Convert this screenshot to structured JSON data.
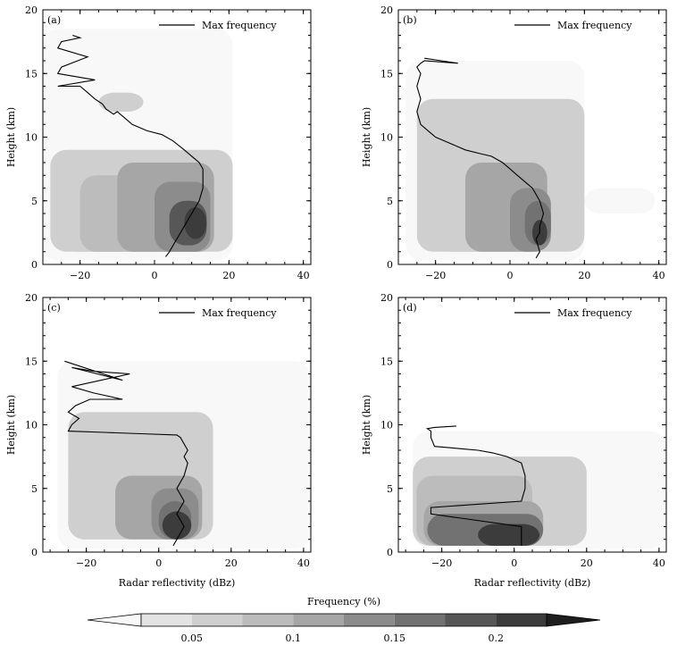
{
  "colorbar": {
    "title": "Frequency (%)",
    "tick_labels": [
      "0.05",
      "0.1",
      "0.15",
      "0.2"
    ],
    "tick_values": [
      0.05,
      0.1,
      0.15,
      0.2
    ],
    "range": [
      0,
      0.25
    ],
    "colors": [
      "#f8f8f8",
      "#e3e3e3",
      "#cfcfcf",
      "#bcbcbc",
      "#a6a6a6",
      "#8c8c8c",
      "#727272",
      "#575757",
      "#3c3c3c",
      "#1e1e1e"
    ]
  },
  "chart_data": [
    {
      "type": "heatmap",
      "panel_label": "(a)",
      "legend": "Max frequency",
      "xlabel": "",
      "ylabel": "Height (km)",
      "xlim": [
        -30,
        42
      ],
      "ylim": [
        0,
        20
      ],
      "x_ticks": [
        -20,
        0,
        20,
        40
      ],
      "y_ticks": [
        0,
        5,
        10,
        15,
        20
      ],
      "x_tick_labels": [
        "−20",
        "0",
        "20",
        "40"
      ],
      "y_tick_labels": [
        "0",
        "5",
        "10",
        "15",
        "20"
      ],
      "max_frequency_line": {
        "x": [
          3,
          4,
          5,
          6,
          7,
          8,
          9,
          10,
          11,
          12,
          13,
          13,
          13,
          12,
          10,
          8,
          5,
          2,
          -2,
          -6,
          -8,
          -10,
          -11,
          -13,
          -14,
          -16,
          -18,
          -20,
          -26,
          -16,
          -26,
          -25,
          -18,
          -26,
          -25,
          -20,
          -22
        ],
        "y": [
          0.6,
          1,
          1.5,
          2,
          2.5,
          3,
          3.5,
          4,
          4.5,
          5,
          6,
          7,
          7.5,
          8,
          8.5,
          9,
          9.7,
          10.2,
          10.5,
          11,
          11.5,
          12,
          11.8,
          12.2,
          12.6,
          13,
          13.5,
          14,
          14,
          14.5,
          15,
          15.5,
          16.3,
          17,
          17.5,
          17.8,
          18
        ]
      },
      "frequency_field": [
        {
          "y": [
            0.3,
            18.5
          ],
          "x": [
            -30,
            21
          ],
          "level": 0.02
        },
        {
          "y": [
            1,
            9
          ],
          "x": [
            -28,
            21
          ],
          "level": 0.05
        },
        {
          "y": [
            12,
            13.5
          ],
          "x": [
            -15,
            -3
          ],
          "level": 0.05
        },
        {
          "y": [
            1,
            6
          ],
          "x": [
            -25,
            10
          ],
          "level": 0.07
        },
        {
          "y": [
            1,
            7
          ],
          "x": [
            -20,
            16
          ],
          "level": 0.08
        },
        {
          "y": [
            1,
            8
          ],
          "x": [
            -10,
            16
          ],
          "level": 0.1
        },
        {
          "y": [
            1,
            6.5
          ],
          "x": [
            0,
            15
          ],
          "level": 0.13
        },
        {
          "y": [
            1.5,
            5
          ],
          "x": [
            4,
            14
          ],
          "level": 0.18
        },
        {
          "y": [
            2,
            4.5
          ],
          "x": [
            8,
            14
          ],
          "level": 0.21
        }
      ]
    },
    {
      "type": "heatmap",
      "panel_label": "(b)",
      "legend": "Max frequency",
      "xlabel": "",
      "ylabel": "Height (km)",
      "xlim": [
        -30,
        42
      ],
      "ylim": [
        0,
        20
      ],
      "x_ticks": [
        -20,
        0,
        20,
        40
      ],
      "y_ticks": [
        0,
        5,
        10,
        15,
        20
      ],
      "x_tick_labels": [
        "−20",
        "0",
        "20",
        "40"
      ],
      "y_tick_labels": [
        "0",
        "5",
        "10",
        "15",
        "20"
      ],
      "max_frequency_line": {
        "x": [
          7,
          8,
          7,
          8,
          8,
          9,
          8,
          7,
          6,
          4,
          2,
          0,
          -2,
          -5,
          -8,
          -12,
          -16,
          -20,
          -22,
          -24,
          -25,
          -24,
          -25,
          -24,
          -25,
          -24,
          -23,
          -14,
          -23
        ],
        "y": [
          0.5,
          1,
          2,
          2.5,
          3,
          4,
          5,
          5.5,
          6,
          6.5,
          7,
          7.5,
          8,
          8.5,
          8.7,
          9,
          9.5,
          10,
          10.5,
          11,
          12,
          13,
          14,
          15,
          15.5,
          15.8,
          16,
          15.8,
          16.2
        ]
      },
      "frequency_field": [
        {
          "y": [
            0.3,
            16
          ],
          "x": [
            -28,
            20
          ],
          "level": 0.02
        },
        {
          "y": [
            4,
            6
          ],
          "x": [
            20,
            39
          ],
          "level": 0.02
        },
        {
          "y": [
            1,
            13
          ],
          "x": [
            -25,
            20
          ],
          "level": 0.05
        },
        {
          "y": [
            1,
            9
          ],
          "x": [
            -20,
            10
          ],
          "level": 0.07
        },
        {
          "y": [
            1,
            8
          ],
          "x": [
            -12,
            10
          ],
          "level": 0.1
        },
        {
          "y": [
            1,
            6
          ],
          "x": [
            0,
            11
          ],
          "level": 0.13
        },
        {
          "y": [
            1.5,
            5
          ],
          "x": [
            4,
            11
          ],
          "level": 0.17
        },
        {
          "y": [
            1.5,
            3.5
          ],
          "x": [
            6,
            10
          ],
          "level": 0.21
        }
      ]
    },
    {
      "type": "heatmap",
      "panel_label": "(c)",
      "legend": "Max frequency",
      "xlabel": "Radar reflectivity (dBz)",
      "ylabel": "Height (km)",
      "xlim": [
        -32,
        42
      ],
      "ylim": [
        0,
        20
      ],
      "x_ticks": [
        -20,
        0,
        20,
        40
      ],
      "y_ticks": [
        0,
        5,
        10,
        15,
        20
      ],
      "x_tick_labels": [
        "−20",
        "0",
        "20",
        "40"
      ],
      "y_tick_labels": [
        "0",
        "5",
        "10",
        "15",
        "20"
      ],
      "max_frequency_line": {
        "x": [
          4,
          5,
          6,
          7,
          6,
          5,
          6,
          7,
          6,
          5,
          7,
          8,
          7,
          8,
          7,
          6,
          5,
          -5,
          -15,
          -25,
          -24,
          -22,
          -25,
          -23,
          -19,
          -10,
          -18,
          -24,
          -8,
          -18,
          -24,
          -10,
          -26
        ],
        "y": [
          0.5,
          1,
          1.5,
          2,
          2.5,
          3,
          3.5,
          4,
          4.5,
          5,
          6,
          7,
          7.5,
          8,
          8.5,
          9,
          9.2,
          9.3,
          9.4,
          9.5,
          10,
          10.5,
          11,
          11.5,
          12,
          12,
          12.5,
          13,
          14,
          14.2,
          14.5,
          13.5,
          15
        ]
      },
      "frequency_field": [
        {
          "y": [
            0.3,
            15
          ],
          "x": [
            -28,
            42
          ],
          "level": 0.02
        },
        {
          "y": [
            1,
            11
          ],
          "x": [
            -25,
            15
          ],
          "level": 0.05
        },
        {
          "y": [
            1,
            7
          ],
          "x": [
            -25,
            12
          ],
          "level": 0.07
        },
        {
          "y": [
            1,
            6
          ],
          "x": [
            -12,
            12
          ],
          "level": 0.1
        },
        {
          "y": [
            1,
            5
          ],
          "x": [
            -2,
            11
          ],
          "level": 0.13
        },
        {
          "y": [
            1,
            4
          ],
          "x": [
            0,
            9
          ],
          "level": 0.17
        },
        {
          "y": [
            1,
            3.2
          ],
          "x": [
            1,
            9
          ],
          "level": 0.22
        }
      ]
    },
    {
      "type": "heatmap",
      "panel_label": "(d)",
      "legend": "Max frequency",
      "xlabel": "Radar reflectivity (dBz)",
      "ylabel": "Height (km)",
      "xlim": [
        -32,
        42
      ],
      "ylim": [
        0,
        20
      ],
      "x_ticks": [
        -20,
        0,
        20,
        40
      ],
      "y_ticks": [
        0,
        5,
        10,
        15,
        20
      ],
      "x_tick_labels": [
        "−20",
        "0",
        "20",
        "40"
      ],
      "y_tick_labels": [
        "0",
        "5",
        "10",
        "15",
        "20"
      ],
      "max_frequency_line": {
        "x": [
          2,
          2,
          2,
          2,
          -23,
          -23,
          2,
          3,
          3,
          2,
          -2,
          -6,
          -10,
          -14,
          -18,
          -22,
          -23,
          -23,
          -24,
          -22,
          -16
        ],
        "y": [
          0.5,
          1,
          1.5,
          2,
          3,
          3.5,
          4,
          5,
          6,
          7,
          7.5,
          7.8,
          8,
          8.1,
          8.2,
          8.3,
          9,
          9.5,
          9.7,
          9.8,
          9.9
        ]
      },
      "frequency_field": [
        {
          "y": [
            0.3,
            9.5
          ],
          "x": [
            -28,
            42
          ],
          "level": 0.02
        },
        {
          "y": [
            0.5,
            7.5
          ],
          "x": [
            -28,
            20
          ],
          "level": 0.05
        },
        {
          "y": [
            0.5,
            6
          ],
          "x": [
            -27,
            5
          ],
          "level": 0.08
        },
        {
          "y": [
            0.5,
            4
          ],
          "x": [
            -25,
            8
          ],
          "level": 0.12
        },
        {
          "y": [
            0.5,
            3
          ],
          "x": [
            -24,
            8
          ],
          "level": 0.17
        },
        {
          "y": [
            0.5,
            2.2
          ],
          "x": [
            -10,
            7
          ],
          "level": 0.21
        }
      ]
    }
  ]
}
